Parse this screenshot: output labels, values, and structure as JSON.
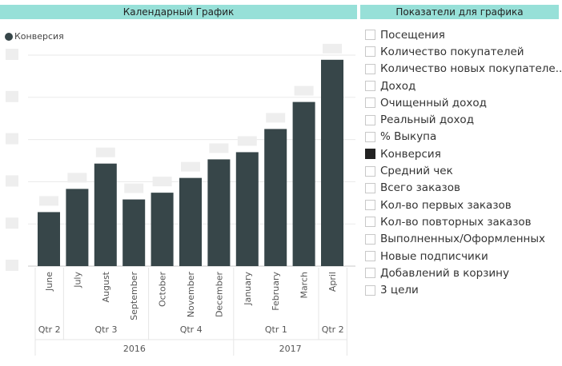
{
  "chart_header": "Календарный График",
  "slicer_header": "Показатели для графика",
  "legend": {
    "label": "Конверсия",
    "color": "#374649"
  },
  "chart_data": {
    "type": "bar",
    "title": "Календарный График",
    "series": [
      {
        "name": "Конверсия",
        "values": [
          1.28,
          1.83,
          2.43,
          1.58,
          1.74,
          2.09,
          2.53,
          2.7,
          3.25,
          3.89,
          4.89
        ]
      }
    ],
    "categories": [
      "June",
      "July",
      "August",
      "September",
      "October",
      "November",
      "December",
      "January",
      "February",
      "March",
      "April"
    ],
    "quarters": [
      {
        "label": "Qtr 2",
        "span": 1
      },
      {
        "label": "Qtr 3",
        "span": 3
      },
      {
        "label": "Qtr 4",
        "span": 3
      },
      {
        "label": "Qtr 1",
        "span": 3
      },
      {
        "label": "Qtr 2",
        "span": 1
      }
    ],
    "years": [
      {
        "label": "2016",
        "span": 7
      },
      {
        "label": "2017",
        "span": 4
      }
    ],
    "ylim": [
      0,
      5
    ],
    "grid": true,
    "legend_position": "top-left",
    "color": "#374649"
  },
  "slicer_items": [
    {
      "label": "Посещения",
      "checked": false
    },
    {
      "label": "Количество покупателей",
      "checked": false
    },
    {
      "label": "Количество новых покупателе..",
      "checked": false
    },
    {
      "label": "Доход",
      "checked": false
    },
    {
      "label": "Очищенный доход",
      "checked": false
    },
    {
      "label": "Реальный доход",
      "checked": false
    },
    {
      "label": "% Выкупа",
      "checked": false
    },
    {
      "label": "Конверсия",
      "checked": true
    },
    {
      "label": "Средний чек",
      "checked": false
    },
    {
      "label": "Всего заказов",
      "checked": false
    },
    {
      "label": "Кол-во первых заказов",
      "checked": false
    },
    {
      "label": "Кол-во повторных заказов",
      "checked": false
    },
    {
      "label": "Выполненных/Оформленных",
      "checked": false
    },
    {
      "label": "Новые подписчики",
      "checked": false
    },
    {
      "label": "Добавлений в корзину",
      "checked": false
    },
    {
      "label": "3 цели",
      "checked": false
    }
  ]
}
